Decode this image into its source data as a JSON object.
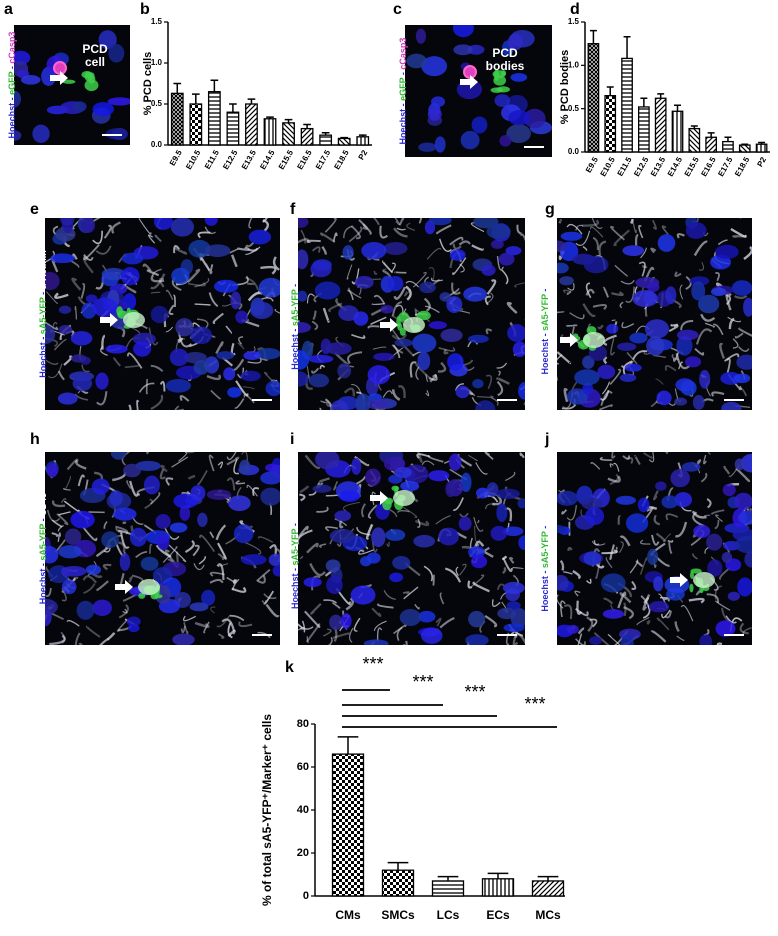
{
  "images": [
    {
      "letter": "a",
      "stain": [
        "Hoechst",
        " - ",
        "eGFP",
        " - ",
        "cCasp3"
      ],
      "annotation": [
        "PCD",
        "cell"
      ]
    },
    {
      "letter": "c",
      "stain": [
        "Hoechst",
        " - ",
        "eGFP",
        " - ",
        "cCasp3"
      ],
      "annotation": [
        "PCD",
        "bodies"
      ]
    },
    {
      "letter": "e",
      "stain": [
        "Hoechst",
        " - ",
        "sA5-YFP",
        " - ",
        "α-Actinin"
      ]
    },
    {
      "letter": "f",
      "stain": [
        "Hoechst",
        " - ",
        "sA5-YFP",
        " - ",
        "MF20"
      ]
    },
    {
      "letter": "g",
      "stain": [
        "Hoechst",
        " - ",
        "sA5-YFP",
        " - ",
        "PECAM"
      ]
    },
    {
      "letter": "h",
      "stain": [
        "Hoechst",
        " - ",
        "sA5-YFP",
        " - ",
        "CD45"
      ]
    },
    {
      "letter": "i",
      "stain": [
        "Hoechst",
        " - ",
        "sA5-YFP",
        " - ",
        "ASMAC"
      ]
    },
    {
      "letter": "j",
      "stain": [
        "Hoechst",
        " - ",
        "sA5-YFP",
        " - ",
        "Vimentin"
      ]
    }
  ],
  "chart_data": [
    {
      "type": "bar",
      "letter": "b",
      "y_label": "% PCD cells",
      "categories": [
        "E9.5",
        "E10.5",
        "E11.5",
        "E12.5",
        "E13.5",
        "E14.5",
        "E15.5",
        "E16.5",
        "E17.5",
        "E18.5",
        "P2"
      ],
      "values": [
        0.63,
        0.5,
        0.65,
        0.4,
        0.5,
        0.32,
        0.27,
        0.2,
        0.12,
        0.08,
        0.1
      ],
      "errors": [
        0.12,
        0.12,
        0.14,
        0.1,
        0.06,
        0.02,
        0.04,
        0.05,
        0.03,
        0.01,
        0.02
      ],
      "ylim": [
        0,
        1.5
      ],
      "yticks": [
        {
          "value": 0,
          "label": "0.0"
        },
        0.5,
        {
          "value": 1,
          "label": "1.0"
        },
        1.5
      ]
    },
    {
      "type": "bar",
      "letter": "d",
      "y_label": "% PCD bodies",
      "categories": [
        "E9.5",
        "E10.5",
        "E11.5",
        "E12.5",
        "E13.5",
        "E14.5",
        "E15.5",
        "E16.5",
        "E17.5",
        "E18.5",
        "P2"
      ],
      "values": [
        1.25,
        0.65,
        1.08,
        0.52,
        0.62,
        0.47,
        0.27,
        0.17,
        0.12,
        0.08,
        0.09
      ],
      "errors": [
        0.15,
        0.1,
        0.25,
        0.1,
        0.05,
        0.07,
        0.03,
        0.05,
        0.05,
        0.01,
        0.02
      ],
      "ylim": [
        0,
        1.5
      ],
      "yticks": [
        {
          "value": 0,
          "label": "0.0"
        },
        0.5,
        {
          "value": 1,
          "label": "1.0"
        },
        1.5
      ]
    },
    {
      "type": "bar",
      "letter": "k",
      "y_label": "% of total sA5-YFP⁺/Marker⁺ cells",
      "categories": [
        "CMs",
        "SMCs",
        "LCs",
        "ECs",
        "MCs"
      ],
      "values": [
        66,
        12,
        7,
        8,
        7
      ],
      "errors": [
        8,
        3.5,
        2,
        2.5,
        2
      ],
      "annotations": [
        "***",
        "***",
        "***",
        "***"
      ],
      "ylim": [
        0,
        80
      ],
      "yticks": [
        0,
        20,
        40,
        60,
        80
      ]
    }
  ]
}
